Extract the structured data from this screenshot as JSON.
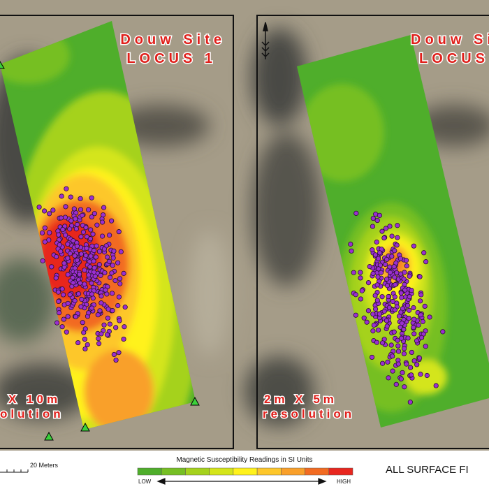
{
  "left_panel": {
    "title": "Douw Site",
    "subtitle": "LOCUS 1",
    "resolution_line1": "X 10m",
    "resolution_line2": "olution"
  },
  "right_panel": {
    "title": "Douw Site",
    "subtitle": "LOCUS",
    "resolution_line1": "2m X 5m",
    "resolution_line2": "resolution"
  },
  "scale_bar": {
    "label": "20 Meters"
  },
  "legend": {
    "title": "Magnetic Susceptibility Readings in SI Units",
    "low": "LOW",
    "high": "HIGH",
    "colors": [
      "#4fae2b",
      "#76bf24",
      "#a5d21d",
      "#d4e51a",
      "#fff21c",
      "#fdc72b",
      "#f9a02b",
      "#f26b22",
      "#e8261f"
    ]
  },
  "caption": "ALL SURFACE FI"
}
